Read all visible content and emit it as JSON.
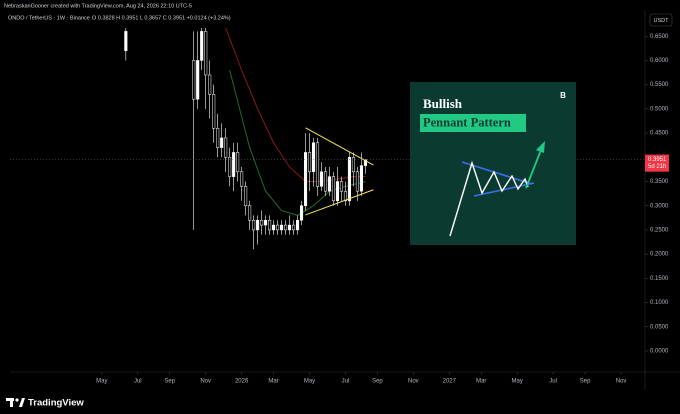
{
  "header": {
    "creator": "NebraskanGooner created with TradingView.com, Aug 24, 2026 22:10 UTC-5",
    "symbol": "ONDO / TetherUS · 1W · Binance",
    "ohlc_text": "O 0.3828 H 0.3951 L 0.3657 C 0.3951 +0.0124 (+3.24%)",
    "currency": "USDT"
  },
  "chart_data": {
    "type": "candlestick",
    "xlim": [
      0,
      159
    ],
    "ylim": [
      -0.0434,
      0.667
    ],
    "xticks": [
      {
        "value": 23,
        "label": "May"
      },
      {
        "value": 32,
        "label": "Jul"
      },
      {
        "value": 40,
        "label": "Sep"
      },
      {
        "value": 49,
        "label": "Nov"
      },
      {
        "value": 58,
        "label": "2026"
      },
      {
        "value": 66,
        "label": "Mar"
      },
      {
        "value": 75,
        "label": "May"
      },
      {
        "value": 84,
        "label": "Jul"
      },
      {
        "value": 92,
        "label": "Sep"
      },
      {
        "value": 101,
        "label": "Nov"
      },
      {
        "value": 110,
        "label": "2027"
      },
      {
        "value": 118,
        "label": "Mar"
      },
      {
        "value": 127,
        "label": "May"
      },
      {
        "value": 136,
        "label": "Jul"
      },
      {
        "value": 144,
        "label": "Sep"
      },
      {
        "value": 153,
        "label": "Nov"
      }
    ],
    "yticks": [
      {
        "value": 0.65,
        "label": "0.6500"
      },
      {
        "value": 0.6,
        "label": "0.6000"
      },
      {
        "value": 0.55,
        "label": "0.5500"
      },
      {
        "value": 0.5,
        "label": "0.5000"
      },
      {
        "value": 0.45,
        "label": "0.4500"
      },
      {
        "value": 0.4,
        "label": "0.4000"
      },
      {
        "value": 0.35,
        "label": "0.3500"
      },
      {
        "value": 0.3,
        "label": "0.3000"
      },
      {
        "value": 0.25,
        "label": "0.2500"
      },
      {
        "value": 0.2,
        "label": "0.2000"
      },
      {
        "value": 0.15,
        "label": "0.1500"
      },
      {
        "value": 0.1,
        "label": "0.1000"
      },
      {
        "value": 0.05,
        "label": "0.0500"
      },
      {
        "value": 0,
        "label": "0.0000"
      }
    ],
    "up_color": "#ffffff",
    "down_color": "#000000",
    "candles": [
      {
        "x": 29,
        "o": 0.62,
        "h": 0.7,
        "l": 0.6,
        "c": 0.66
      },
      {
        "x": 46,
        "o": 0.6,
        "h": 0.66,
        "l": 0.25,
        "c": 0.52
      },
      {
        "x": 47,
        "o": 0.52,
        "h": 0.66,
        "l": 0.5,
        "c": 0.6
      },
      {
        "x": 48,
        "o": 0.6,
        "h": 0.67,
        "l": 0.58,
        "c": 0.66
      },
      {
        "x": 49,
        "o": 0.66,
        "h": 0.67,
        "l": 0.5,
        "c": 0.57
      },
      {
        "x": 50,
        "o": 0.57,
        "h": 0.6,
        "l": 0.48,
        "c": 0.53
      },
      {
        "x": 51,
        "o": 0.53,
        "h": 0.55,
        "l": 0.43,
        "c": 0.46
      },
      {
        "x": 52,
        "o": 0.46,
        "h": 0.49,
        "l": 0.4,
        "c": 0.42
      },
      {
        "x": 53,
        "o": 0.42,
        "h": 0.47,
        "l": 0.4,
        "c": 0.44
      },
      {
        "x": 54,
        "o": 0.44,
        "h": 0.46,
        "l": 0.37,
        "c": 0.4
      },
      {
        "x": 55,
        "o": 0.4,
        "h": 0.42,
        "l": 0.34,
        "c": 0.36
      },
      {
        "x": 56,
        "o": 0.36,
        "h": 0.43,
        "l": 0.33,
        "c": 0.41
      },
      {
        "x": 57,
        "o": 0.41,
        "h": 0.43,
        "l": 0.35,
        "c": 0.37
      },
      {
        "x": 58,
        "o": 0.37,
        "h": 0.38,
        "l": 0.31,
        "c": 0.34
      },
      {
        "x": 59,
        "o": 0.34,
        "h": 0.35,
        "l": 0.28,
        "c": 0.3
      },
      {
        "x": 60,
        "o": 0.3,
        "h": 0.31,
        "l": 0.25,
        "c": 0.27
      },
      {
        "x": 61,
        "o": 0.27,
        "h": 0.28,
        "l": 0.21,
        "c": 0.25
      },
      {
        "x": 62,
        "o": 0.25,
        "h": 0.28,
        "l": 0.22,
        "c": 0.27
      },
      {
        "x": 63,
        "o": 0.27,
        "h": 0.29,
        "l": 0.24,
        "c": 0.26
      },
      {
        "x": 64,
        "o": 0.26,
        "h": 0.28,
        "l": 0.24,
        "c": 0.27
      },
      {
        "x": 65,
        "o": 0.27,
        "h": 0.28,
        "l": 0.24,
        "c": 0.25
      },
      {
        "x": 66,
        "o": 0.25,
        "h": 0.27,
        "l": 0.24,
        "c": 0.26
      },
      {
        "x": 67,
        "o": 0.26,
        "h": 0.27,
        "l": 0.24,
        "c": 0.25
      },
      {
        "x": 68,
        "o": 0.25,
        "h": 0.27,
        "l": 0.24,
        "c": 0.26
      },
      {
        "x": 69,
        "o": 0.26,
        "h": 0.27,
        "l": 0.24,
        "c": 0.25
      },
      {
        "x": 70,
        "o": 0.25,
        "h": 0.28,
        "l": 0.24,
        "c": 0.26
      },
      {
        "x": 71,
        "o": 0.26,
        "h": 0.27,
        "l": 0.24,
        "c": 0.25
      },
      {
        "x": 72,
        "o": 0.25,
        "h": 0.28,
        "l": 0.24,
        "c": 0.27
      },
      {
        "x": 73,
        "o": 0.27,
        "h": 0.31,
        "l": 0.26,
        "c": 0.3
      },
      {
        "x": 74,
        "o": 0.3,
        "h": 0.45,
        "l": 0.29,
        "c": 0.41
      },
      {
        "x": 75,
        "o": 0.41,
        "h": 0.45,
        "l": 0.33,
        "c": 0.37
      },
      {
        "x": 76,
        "o": 0.37,
        "h": 0.44,
        "l": 0.34,
        "c": 0.43
      },
      {
        "x": 77,
        "o": 0.43,
        "h": 0.44,
        "l": 0.32,
        "c": 0.34
      },
      {
        "x": 78,
        "o": 0.34,
        "h": 0.39,
        "l": 0.33,
        "c": 0.37
      },
      {
        "x": 79,
        "o": 0.37,
        "h": 0.38,
        "l": 0.32,
        "c": 0.33
      },
      {
        "x": 80,
        "o": 0.33,
        "h": 0.38,
        "l": 0.32,
        "c": 0.36
      },
      {
        "x": 81,
        "o": 0.36,
        "h": 0.37,
        "l": 0.3,
        "c": 0.31
      },
      {
        "x": 82,
        "o": 0.31,
        "h": 0.38,
        "l": 0.3,
        "c": 0.35
      },
      {
        "x": 83,
        "o": 0.35,
        "h": 0.36,
        "l": 0.31,
        "c": 0.33
      },
      {
        "x": 84,
        "o": 0.33,
        "h": 0.35,
        "l": 0.3,
        "c": 0.31
      },
      {
        "x": 85,
        "o": 0.31,
        "h": 0.41,
        "l": 0.3,
        "c": 0.4
      },
      {
        "x": 86,
        "o": 0.4,
        "h": 0.41,
        "l": 0.34,
        "c": 0.37
      },
      {
        "x": 87,
        "o": 0.37,
        "h": 0.38,
        "l": 0.31,
        "c": 0.33
      },
      {
        "x": 88,
        "o": 0.33,
        "h": 0.41,
        "l": 0.32,
        "c": 0.3828
      },
      {
        "x": 89,
        "o": 0.3828,
        "h": 0.3951,
        "l": 0.3657,
        "c": 0.3951
      }
    ],
    "moving_averages": [
      {
        "color": "#8b1a1a",
        "x": [
          54,
          58,
          62,
          66,
          70,
          74,
          78,
          82,
          86,
          89
        ],
        "values": [
          0.667,
          0.58,
          0.5,
          0.43,
          0.38,
          0.35,
          0.35,
          0.355,
          0.36,
          0.36
        ]
      },
      {
        "color": "#1f6b2e",
        "x": [
          55,
          60,
          64,
          68,
          72,
          76,
          80,
          84,
          89
        ],
        "values": [
          0.58,
          0.42,
          0.33,
          0.29,
          0.28,
          0.3,
          0.33,
          0.34,
          0.35
        ]
      }
    ],
    "trendlines": [
      {
        "color": "#f5e663",
        "x": [
          74,
          91
        ],
        "values": [
          0.461,
          0.384
        ]
      },
      {
        "color": "#f5e663",
        "x": [
          74,
          91
        ],
        "values": [
          0.281,
          0.333
        ]
      }
    ],
    "last_price": 0.3951,
    "countdown": "5d 21h",
    "last_price_color": "#f23645"
  },
  "inset": {
    "title": "Bullish",
    "subtitle": "Pennant Pattern",
    "badge": "B"
  },
  "footer": {
    "brand": "TradingView"
  }
}
